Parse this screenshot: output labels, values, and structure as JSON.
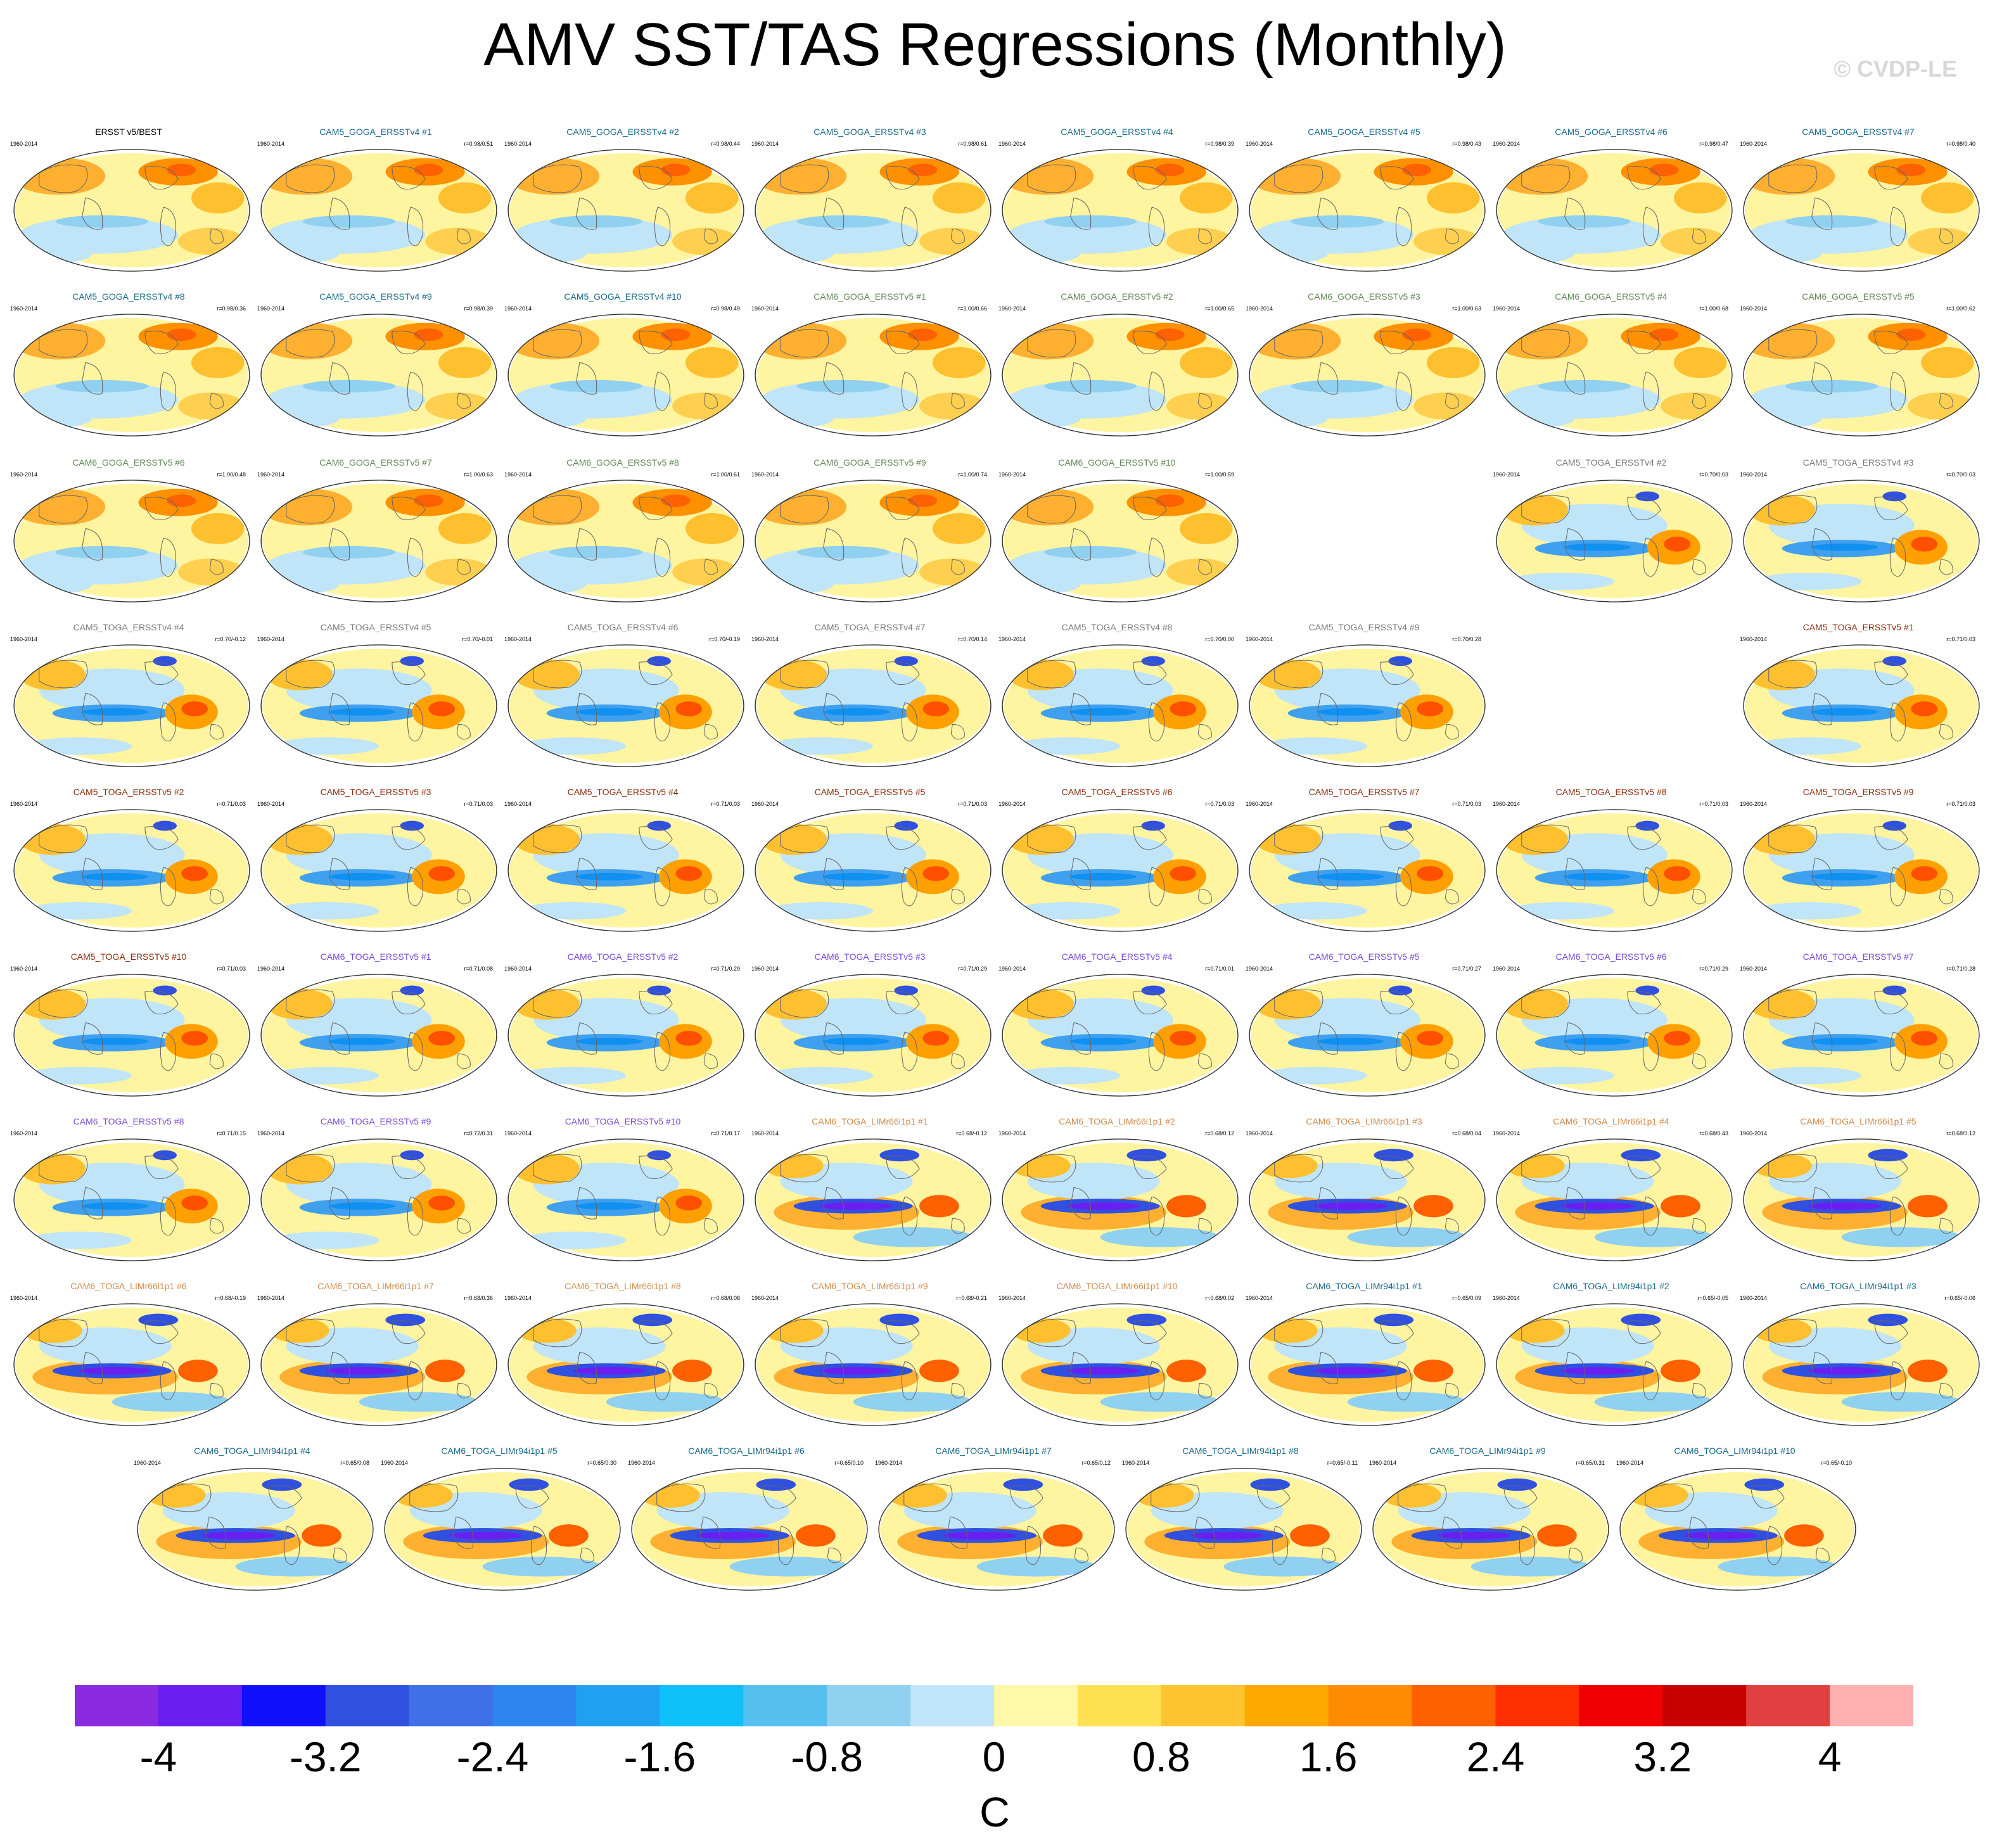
{
  "title": "AMV SST/TAS Regressions (Monthly)",
  "copyright": "© CVDP-LE",
  "period": "1960-2014",
  "chart_data": {
    "type": "map-panel-grid",
    "variable": "AMV SST/TAS regression",
    "units": "C",
    "colorbar": {
      "tick_labels": [
        "-4",
        "-3.2",
        "-2.4",
        "-1.6",
        "-0.8",
        "0",
        "0.8",
        "1.6",
        "2.4",
        "3.2",
        "4"
      ],
      "tick_values": [
        -4,
        -3.2,
        -2.4,
        -1.6,
        -0.8,
        0,
        0.8,
        1.6,
        2.4,
        3.2,
        4
      ],
      "colors": [
        "#8a2be2",
        "#6a1ff0",
        "#1010ff",
        "#3050e0",
        "#4070e8",
        "#2e86f0",
        "#20a0f0",
        "#10c0f8",
        "#55c0f0",
        "#90d0f0",
        "#c0e4f8",
        "#fff8a8",
        "#ffe050",
        "#ffc430",
        "#ffa800",
        "#ff8c00",
        "#ff6000",
        "#ff3000",
        "#f00000",
        "#c80000",
        "#e04040",
        "#ffb0b0"
      ]
    },
    "groups": {
      "obs": "#000000",
      "cam5goga": "#1a6a8a",
      "cam6goga": "#5f8a55",
      "cam5togav4": "#7a7a7a",
      "cam5togav5": "#8a2d0e",
      "cam6toga": "#7a4ad8",
      "limr66": "#d08a4a",
      "limr94": "#1a6a8a"
    },
    "panels": [
      {
        "title": "ERSST v5/BEST",
        "group": "obs",
        "corr": "",
        "pattern": "goga"
      },
      {
        "title": "CAM5_GOGA_ERSSTv4 #1",
        "group": "cam5goga",
        "corr": "r=0.98/0.51",
        "pattern": "goga"
      },
      {
        "title": "CAM5_GOGA_ERSSTv4 #2",
        "group": "cam5goga",
        "corr": "r=0.98/0.44",
        "pattern": "goga"
      },
      {
        "title": "CAM5_GOGA_ERSSTv4 #3",
        "group": "cam5goga",
        "corr": "r=0.98/0.61",
        "pattern": "goga"
      },
      {
        "title": "CAM5_GOGA_ERSSTv4 #4",
        "group": "cam5goga",
        "corr": "r=0.98/0.39",
        "pattern": "goga"
      },
      {
        "title": "CAM5_GOGA_ERSSTv4 #5",
        "group": "cam5goga",
        "corr": "r=0.98/0.43",
        "pattern": "goga"
      },
      {
        "title": "CAM5_GOGA_ERSSTv4 #6",
        "group": "cam5goga",
        "corr": "r=0.98/0.47",
        "pattern": "goga"
      },
      {
        "title": "CAM5_GOGA_ERSSTv4 #7",
        "group": "cam5goga",
        "corr": "r=0.98/0.40",
        "pattern": "goga"
      },
      {
        "title": "CAM5_GOGA_ERSSTv4 #8",
        "group": "cam5goga",
        "corr": "r=0.98/0.36",
        "pattern": "goga"
      },
      {
        "title": "CAM5_GOGA_ERSSTv4 #9",
        "group": "cam5goga",
        "corr": "r=0.98/0.39",
        "pattern": "goga"
      },
      {
        "title": "CAM5_GOGA_ERSSTv4 #10",
        "group": "cam5goga",
        "corr": "r=0.98/0.49",
        "pattern": "goga"
      },
      {
        "title": "CAM6_GOGA_ERSSTv5 #1",
        "group": "cam6goga",
        "corr": "r=1.00/0.66",
        "pattern": "goga"
      },
      {
        "title": "CAM6_GOGA_ERSSTv5 #2",
        "group": "cam6goga",
        "corr": "r=1.00/0.65",
        "pattern": "goga"
      },
      {
        "title": "CAM6_GOGA_ERSSTv5 #3",
        "group": "cam6goga",
        "corr": "r=1.00/0.63",
        "pattern": "goga"
      },
      {
        "title": "CAM6_GOGA_ERSSTv5 #4",
        "group": "cam6goga",
        "corr": "r=1.00/0.68",
        "pattern": "goga"
      },
      {
        "title": "CAM6_GOGA_ERSSTv5 #5",
        "group": "cam6goga",
        "corr": "r=1.00/0.62",
        "pattern": "goga"
      },
      {
        "title": "CAM6_GOGA_ERSSTv5 #6",
        "group": "cam6goga",
        "corr": "r=1.00/0.48",
        "pattern": "goga"
      },
      {
        "title": "CAM6_GOGA_ERSSTv5 #7",
        "group": "cam6goga",
        "corr": "r=1.00/0.63",
        "pattern": "goga"
      },
      {
        "title": "CAM6_GOGA_ERSSTv5 #8",
        "group": "cam6goga",
        "corr": "r=1.00/0.61",
        "pattern": "goga"
      },
      {
        "title": "CAM6_GOGA_ERSSTv5 #9",
        "group": "cam6goga",
        "corr": "r=1.00/0.74",
        "pattern": "goga"
      },
      {
        "title": "CAM6_GOGA_ERSSTv5 #10",
        "group": "cam6goga",
        "corr": "r=1.00/0.59",
        "pattern": "goga"
      },
      {
        "title": "CAM5_TOGA_ERSSTv4 #2",
        "group": "cam5togav4",
        "corr": "r=0.70/0.03",
        "pattern": "toga"
      },
      {
        "title": "CAM5_TOGA_ERSSTv4 #3",
        "group": "cam5togav4",
        "corr": "r=0.70/0.03",
        "pattern": "toga"
      },
      {
        "title": "CAM5_TOGA_ERSSTv4 #4",
        "group": "cam5togav4",
        "corr": "r=0.70/-0.12",
        "pattern": "toga"
      },
      {
        "title": "CAM5_TOGA_ERSSTv4 #5",
        "group": "cam5togav4",
        "corr": "r=0.70/-0.01",
        "pattern": "toga"
      },
      {
        "title": "CAM5_TOGA_ERSSTv4 #6",
        "group": "cam5togav4",
        "corr": "r=0.70/-0.19",
        "pattern": "toga"
      },
      {
        "title": "CAM5_TOGA_ERSSTv4 #7",
        "group": "cam5togav4",
        "corr": "r=0.70/0.14",
        "pattern": "toga"
      },
      {
        "title": "CAM5_TOGA_ERSSTv4 #8",
        "group": "cam5togav4",
        "corr": "r=0.70/0.00",
        "pattern": "toga"
      },
      {
        "title": "CAM5_TOGA_ERSSTv4 #9",
        "group": "cam5togav4",
        "corr": "r=0.70/0.28",
        "pattern": "toga"
      },
      {
        "title": "CAM5_TOGA_ERSSTv5 #1",
        "group": "cam5togav5",
        "corr": "r=0.71/0.03",
        "pattern": "toga"
      },
      {
        "title": "CAM5_TOGA_ERSSTv5 #2",
        "group": "cam5togav5",
        "corr": "r=0.71/0.03",
        "pattern": "toga"
      },
      {
        "title": "CAM5_TOGA_ERSSTv5 #3",
        "group": "cam5togav5",
        "corr": "r=0.71/0.03",
        "pattern": "toga"
      },
      {
        "title": "CAM5_TOGA_ERSSTv5 #4",
        "group": "cam5togav5",
        "corr": "r=0.71/0.03",
        "pattern": "toga"
      },
      {
        "title": "CAM5_TOGA_ERSSTv5 #5",
        "group": "cam5togav5",
        "corr": "r=0.71/0.03",
        "pattern": "toga"
      },
      {
        "title": "CAM5_TOGA_ERSSTv5 #6",
        "group": "cam5togav5",
        "corr": "r=0.71/0.03",
        "pattern": "toga"
      },
      {
        "title": "CAM5_TOGA_ERSSTv5 #7",
        "group": "cam5togav5",
        "corr": "r=0.71/0.03",
        "pattern": "toga"
      },
      {
        "title": "CAM5_TOGA_ERSSTv5 #8",
        "group": "cam5togav5",
        "corr": "r=0.71/0.03",
        "pattern": "toga"
      },
      {
        "title": "CAM5_TOGA_ERSSTv5 #9",
        "group": "cam5togav5",
        "corr": "r=0.71/0.03",
        "pattern": "toga"
      },
      {
        "title": "CAM5_TOGA_ERSSTv5 #10",
        "group": "cam5togav5",
        "corr": "r=0.71/0.03",
        "pattern": "toga"
      },
      {
        "title": "CAM6_TOGA_ERSSTv5 #1",
        "group": "cam6toga",
        "corr": "r=0.71/0.08",
        "pattern": "toga"
      },
      {
        "title": "CAM6_TOGA_ERSSTv5 #2",
        "group": "cam6toga",
        "corr": "r=0.71/0.29",
        "pattern": "toga"
      },
      {
        "title": "CAM6_TOGA_ERSSTv5 #3",
        "group": "cam6toga",
        "corr": "r=0.71/0.29",
        "pattern": "toga"
      },
      {
        "title": "CAM6_TOGA_ERSSTv5 #4",
        "group": "cam6toga",
        "corr": "r=0.71/0.01",
        "pattern": "toga"
      },
      {
        "title": "CAM6_TOGA_ERSSTv5 #5",
        "group": "cam6toga",
        "corr": "r=0.71/0.27",
        "pattern": "toga"
      },
      {
        "title": "CAM6_TOGA_ERSSTv5 #6",
        "group": "cam6toga",
        "corr": "r=0.71/0.29",
        "pattern": "toga"
      },
      {
        "title": "CAM6_TOGA_ERSSTv5 #7",
        "group": "cam6toga",
        "corr": "r=0.71/0.28",
        "pattern": "toga"
      },
      {
        "title": "CAM6_TOGA_ERSSTv5 #8",
        "group": "cam6toga",
        "corr": "r=0.71/0.15",
        "pattern": "toga"
      },
      {
        "title": "CAM6_TOGA_ERSSTv5 #9",
        "group": "cam6toga",
        "corr": "r=0.72/0.31",
        "pattern": "toga"
      },
      {
        "title": "CAM6_TOGA_ERSSTv5 #10",
        "group": "cam6toga",
        "corr": "r=0.71/0.17",
        "pattern": "toga"
      },
      {
        "title": "CAM6_TOGA_LIMr66i1p1 #1",
        "group": "limr66",
        "corr": "r=0.68/-0.12",
        "pattern": "lim"
      },
      {
        "title": "CAM6_TOGA_LIMr66i1p1 #2",
        "group": "limr66",
        "corr": "r=0.68/0.12",
        "pattern": "lim"
      },
      {
        "title": "CAM6_TOGA_LIMr66i1p1 #3",
        "group": "limr66",
        "corr": "r=0.68/0.04",
        "pattern": "lim"
      },
      {
        "title": "CAM6_TOGA_LIMr66i1p1 #4",
        "group": "limr66",
        "corr": "r=0.68/0.43",
        "pattern": "lim"
      },
      {
        "title": "CAM6_TOGA_LIMr66i1p1 #5",
        "group": "limr66",
        "corr": "r=0.68/0.12",
        "pattern": "lim"
      },
      {
        "title": "CAM6_TOGA_LIMr66i1p1 #6",
        "group": "limr66",
        "corr": "r=0.68/-0.19",
        "pattern": "lim"
      },
      {
        "title": "CAM6_TOGA_LIMr66i1p1 #7",
        "group": "limr66",
        "corr": "r=0.68/0.36",
        "pattern": "lim"
      },
      {
        "title": "CAM6_TOGA_LIMr66i1p1 #8",
        "group": "limr66",
        "corr": "r=0.68/0.08",
        "pattern": "lim"
      },
      {
        "title": "CAM6_TOGA_LIMr66i1p1 #9",
        "group": "limr66",
        "corr": "r=0.68/-0.21",
        "pattern": "lim"
      },
      {
        "title": "CAM6_TOGA_LIMr66i1p1 #10",
        "group": "limr66",
        "corr": "r=0.68/0.02",
        "pattern": "lim"
      },
      {
        "title": "CAM6_TOGA_LIMr94i1p1 #1",
        "group": "limr94",
        "corr": "r=0.65/0.09",
        "pattern": "lim"
      },
      {
        "title": "CAM6_TOGA_LIMr94i1p1 #2",
        "group": "limr94",
        "corr": "r=0.65/-0.05",
        "pattern": "lim"
      },
      {
        "title": "CAM6_TOGA_LIMr94i1p1 #3",
        "group": "limr94",
        "corr": "r=0.65/-0.06",
        "pattern": "lim"
      },
      {
        "title": "CAM6_TOGA_LIMr94i1p1 #4",
        "group": "limr94",
        "corr": "r=0.65/0.08",
        "pattern": "lim"
      },
      {
        "title": "CAM6_TOGA_LIMr94i1p1 #5",
        "group": "limr94",
        "corr": "r=0.65/0.30",
        "pattern": "lim"
      },
      {
        "title": "CAM6_TOGA_LIMr94i1p1 #6",
        "group": "limr94",
        "corr": "r=0.65/0.10",
        "pattern": "lim"
      },
      {
        "title": "CAM6_TOGA_LIMr94i1p1 #7",
        "group": "limr94",
        "corr": "r=0.65/0.12",
        "pattern": "lim"
      },
      {
        "title": "CAM6_TOGA_LIMr94i1p1 #8",
        "group": "limr94",
        "corr": "r=0.65/-0.11",
        "pattern": "lim"
      },
      {
        "title": "CAM6_TOGA_LIMr94i1p1 #9",
        "group": "limr94",
        "corr": "r=0.65/0.31",
        "pattern": "lim"
      },
      {
        "title": "CAM6_TOGA_LIMr94i1p1 #10",
        "group": "limr94",
        "corr": "r=0.65/-0.10",
        "pattern": "lim"
      }
    ]
  }
}
